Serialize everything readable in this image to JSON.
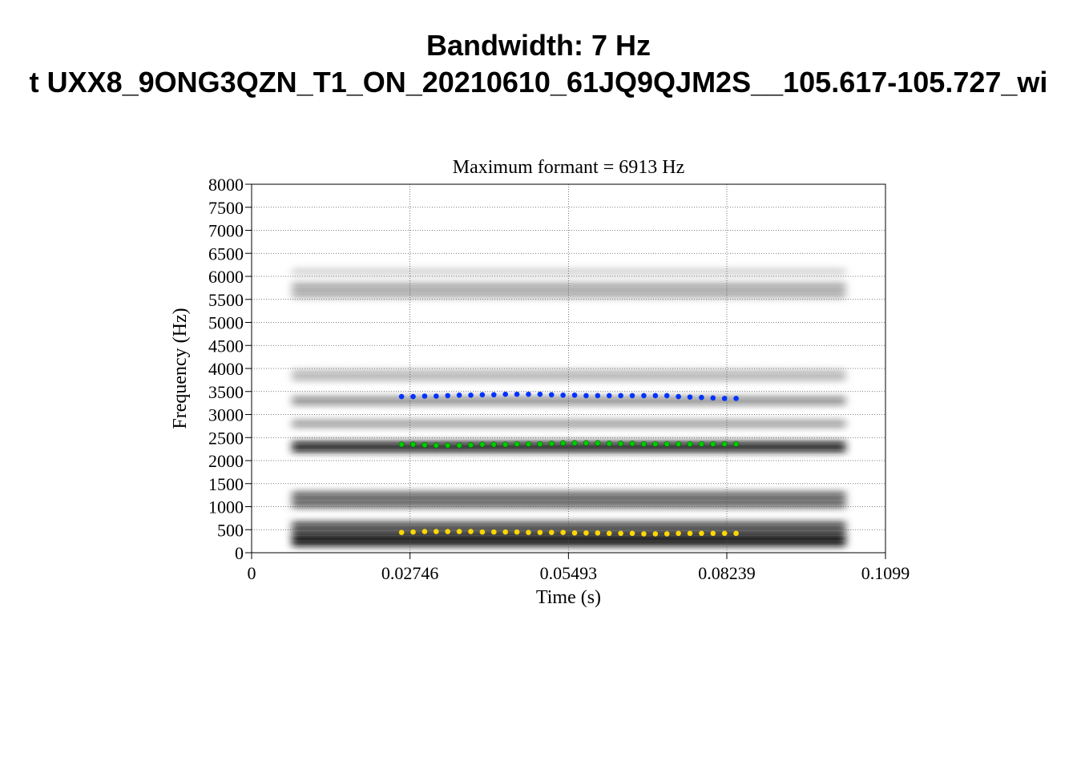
{
  "figure": {
    "title_line1": "Bandwidth: 7 Hz",
    "title_line2": "t UXX8_9ONG3QZN_T1_ON_20210610_61JQ9QJM2S__105.617-105.727_wi"
  },
  "chart_data": {
    "type": "scatter",
    "title": "Maximum formant  =  6913 Hz",
    "xlabel": "Time (s)",
    "ylabel": "Frequency (Hz)",
    "xlim": [
      0,
      0.1099
    ],
    "ylim": [
      0,
      8000
    ],
    "x_ticks": [
      0,
      0.02746,
      0.05493,
      0.08239,
      0.1099
    ],
    "x_tick_labels": [
      "0",
      "0.02746",
      "0.05493",
      "0.08239",
      "0.1099"
    ],
    "y_ticks": [
      0,
      500,
      1000,
      1500,
      2000,
      2500,
      3000,
      3500,
      4000,
      4500,
      5000,
      5500,
      6000,
      6500,
      7000,
      7500,
      8000
    ],
    "y_tick_labels": [
      "0",
      "500",
      "1000",
      "1500",
      "2000",
      "2500",
      "3000",
      "3500",
      "4000",
      "4500",
      "5000",
      "5500",
      "6000",
      "6500",
      "7000",
      "7500",
      "8000"
    ],
    "grid": true,
    "spectrogram_time_range": [
      0.007,
      0.103
    ],
    "frame_times": [
      0.026,
      0.028,
      0.03,
      0.032,
      0.034,
      0.036,
      0.038,
      0.04,
      0.042,
      0.044,
      0.046,
      0.048,
      0.05,
      0.052,
      0.054,
      0.056,
      0.058,
      0.06,
      0.062,
      0.064,
      0.066,
      0.068,
      0.07,
      0.072,
      0.074,
      0.076,
      0.078,
      0.08,
      0.082,
      0.084
    ],
    "series": [
      {
        "color": "#0033ff",
        "values": [
          3390,
          3390,
          3400,
          3400,
          3410,
          3420,
          3420,
          3430,
          3430,
          3440,
          3440,
          3440,
          3440,
          3430,
          3420,
          3420,
          3410,
          3410,
          3410,
          3410,
          3410,
          3410,
          3410,
          3410,
          3390,
          3380,
          3370,
          3360,
          3350,
          3350
        ]
      },
      {
        "color": "#00cc00",
        "values": [
          2350,
          2350,
          2340,
          2330,
          2330,
          2330,
          2340,
          2350,
          2350,
          2350,
          2360,
          2360,
          2360,
          2370,
          2380,
          2380,
          2380,
          2380,
          2370,
          2370,
          2370,
          2360,
          2360,
          2360,
          2360,
          2360,
          2360,
          2360,
          2360,
          2360
        ]
      },
      {
        "color": "#ffd700",
        "values": [
          440,
          450,
          460,
          460,
          460,
          460,
          460,
          450,
          450,
          450,
          450,
          440,
          440,
          440,
          440,
          430,
          430,
          430,
          420,
          420,
          420,
          410,
          410,
          410,
          420,
          420,
          420,
          420,
          420,
          420
        ]
      }
    ],
    "spectral_bands": [
      {
        "center": 280,
        "width": 300,
        "strength": 1.0
      },
      {
        "center": 560,
        "width": 260,
        "strength": 0.75
      },
      {
        "center": 1150,
        "width": 380,
        "strength": 0.65
      },
      {
        "center": 2300,
        "width": 260,
        "strength": 0.9
      },
      {
        "center": 2800,
        "width": 200,
        "strength": 0.4
      },
      {
        "center": 3300,
        "width": 220,
        "strength": 0.45
      },
      {
        "center": 3850,
        "width": 260,
        "strength": 0.3
      },
      {
        "center": 5700,
        "width": 360,
        "strength": 0.35
      },
      {
        "center": 6100,
        "width": 160,
        "strength": 0.2
      }
    ]
  }
}
